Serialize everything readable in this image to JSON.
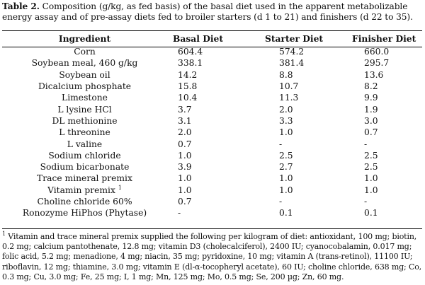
{
  "caption": {
    "label": "Table 2.",
    "text": " Composition (g/kg, as fed basis) of the basal diet used in the apparent metabolizable energy assay and of pre-assay diets fed to broiler starters (d 1 to 21) and finishers (d 22 to 35)."
  },
  "headers": {
    "ingredient": "Ingredient",
    "basal": "Basal Diet",
    "starter": "Starter Diet",
    "finisher": "Finisher Diet"
  },
  "rows": [
    {
      "ingredient": "Corn",
      "basal": "604.4",
      "starter": "574.2",
      "finisher": "660.0"
    },
    {
      "ingredient": "Soybean meal, 460 g/kg",
      "basal": "338.1",
      "starter": "381.4",
      "finisher": "295.7"
    },
    {
      "ingredient": "Soybean oil",
      "basal": "14.2",
      "starter": "8.8",
      "finisher": "13.6"
    },
    {
      "ingredient": "Dicalcium phosphate",
      "basal": "15.8",
      "starter": "10.7",
      "finisher": "8.2"
    },
    {
      "ingredient": "Limestone",
      "basal": "10.4",
      "starter": "11.3",
      "finisher": "9.9"
    },
    {
      "ingredient": "L lysine HCl",
      "basal": "3.7",
      "starter": "2.0",
      "finisher": "1.9"
    },
    {
      "ingredient": "DL methionine",
      "basal": "3.1",
      "starter": "3.3",
      "finisher": "3.0"
    },
    {
      "ingredient": "L threonine",
      "basal": "2.0",
      "starter": "1.0",
      "finisher": "0.7"
    },
    {
      "ingredient": "L valine",
      "basal": "0.7",
      "starter": "-",
      "finisher": "-"
    },
    {
      "ingredient": "Sodium chloride",
      "basal": "1.0",
      "starter": "2.5",
      "finisher": "2.5"
    },
    {
      "ingredient": "Sodium bicarbonate",
      "basal": "3.9",
      "starter": "2.7",
      "finisher": "2.5"
    },
    {
      "ingredient": "Trace mineral premix",
      "basal": "1.0",
      "starter": "1.0",
      "finisher": "1.0"
    },
    {
      "ingredient": "Vitamin premix",
      "sup": "1",
      "basal": "1.0",
      "starter": "1.0",
      "finisher": "1.0"
    },
    {
      "ingredient": "Choline chloride 60%",
      "basal": "0.7",
      "starter": "-",
      "finisher": "-"
    },
    {
      "ingredient": "Ronozyme HiPhos (Phytase)",
      "basal": "-",
      "starter": "0.1",
      "finisher": "0.1"
    }
  ],
  "footnote": {
    "marker": "1",
    "text": " Vitamin and trace mineral premix supplied the following per kilogram of diet: antioxidant, 100 mg; biotin, 0.2 mg; calcium pantothenate, 12.8 mg; vitamin D3 (cholecalciferol), 2400 IU; cyanocobalamin, 0.017 mg; folic acid, 5.2 mg; menadione, 4 mg; niacin, 35 mg; pyridoxine, 10 mg; vitamin A (trans-retinol), 11100 IU; riboflavin, 12 mg; thiamine, 3.0 mg; vitamin E (dl-α-tocopheryl acetate), 60 IU; choline chloride, 638 mg; Co, 0.3 mg; Cu, 3.0 mg; Fe, 25 mg; I, 1 mg; Mn, 125 mg; Mo, 0.5 mg; Se, 200 µg; Zn, 60 mg."
  }
}
